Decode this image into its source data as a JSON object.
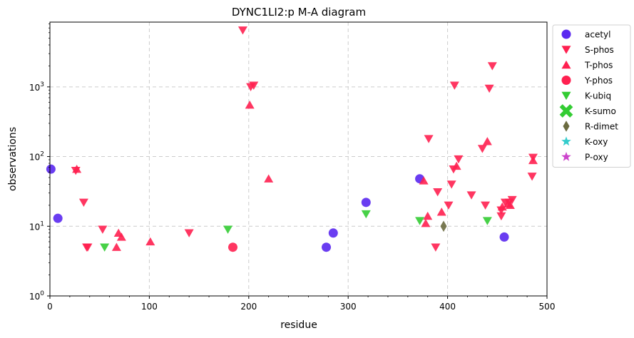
{
  "chart_data": {
    "type": "scatter",
    "title": "DYNC1LI2:p M-A diagram",
    "xlabel": "residue",
    "ylabel": "observations",
    "xlim": [
      0,
      500
    ],
    "ylim": [
      1,
      8500
    ],
    "yscale": "log",
    "grid": true,
    "legend_position": "outside-right",
    "x_ticks": [
      {
        "value": 0,
        "label": "0"
      },
      {
        "value": 100,
        "label": "100"
      },
      {
        "value": 200,
        "label": "200"
      },
      {
        "value": 300,
        "label": "300"
      },
      {
        "value": 400,
        "label": "400"
      },
      {
        "value": 500,
        "label": "500"
      }
    ],
    "y_ticks": [
      {
        "value": 1,
        "base": "10",
        "exp": "0"
      },
      {
        "value": 10,
        "base": "10",
        "exp": "1"
      },
      {
        "value": 100,
        "base": "10",
        "exp": "2"
      },
      {
        "value": 1000,
        "base": "10",
        "exp": "3"
      }
    ],
    "series": [
      {
        "name": "acetyl",
        "marker": "circle",
        "color": "#5a28f0",
        "points": [
          [
            1,
            66
          ],
          [
            8,
            13
          ],
          [
            278,
            5
          ],
          [
            285,
            8
          ],
          [
            318,
            22
          ],
          [
            372,
            48
          ],
          [
            457,
            7
          ]
        ]
      },
      {
        "name": "S-phos",
        "marker": "triangle-down",
        "color": "#ff2050",
        "points": [
          [
            26,
            63
          ],
          [
            34,
            22
          ],
          [
            37,
            5
          ],
          [
            38,
            5
          ],
          [
            53,
            9
          ],
          [
            140,
            8
          ],
          [
            194,
            6500
          ],
          [
            202,
            1000
          ],
          [
            205,
            1050
          ],
          [
            381,
            180
          ],
          [
            388,
            5
          ],
          [
            390,
            31
          ],
          [
            401,
            20
          ],
          [
            404,
            40
          ],
          [
            406,
            66
          ],
          [
            407,
            1050
          ],
          [
            411,
            92
          ],
          [
            424,
            28
          ],
          [
            435,
            130
          ],
          [
            438,
            20
          ],
          [
            442,
            950
          ],
          [
            445,
            2000
          ],
          [
            454,
            14
          ],
          [
            454,
            17
          ],
          [
            458,
            22
          ],
          [
            462,
            22
          ],
          [
            465,
            24
          ],
          [
            485,
            52
          ],
          [
            486,
            97
          ]
        ]
      },
      {
        "name": "T-phos",
        "marker": "triangle-up",
        "color": "#ff2050",
        "points": [
          [
            27,
            66
          ],
          [
            67,
            5
          ],
          [
            69,
            8
          ],
          [
            72,
            7
          ],
          [
            101,
            6
          ],
          [
            201,
            550
          ],
          [
            220,
            48
          ],
          [
            376,
            45
          ],
          [
            378,
            11
          ],
          [
            380,
            14
          ],
          [
            394,
            16
          ],
          [
            409,
            73
          ],
          [
            440,
            165
          ],
          [
            455,
            19
          ],
          [
            461,
            21
          ],
          [
            463,
            20
          ],
          [
            486,
            88
          ]
        ]
      },
      {
        "name": "Y-phos",
        "marker": "circle",
        "color": "#ff2050",
        "points": [
          [
            184,
            5
          ]
        ]
      },
      {
        "name": "K-ubiq",
        "marker": "triangle-down",
        "color": "#33cc33",
        "points": [
          [
            55,
            5
          ],
          [
            179,
            9
          ],
          [
            318,
            15
          ],
          [
            372,
            12
          ],
          [
            440,
            12
          ]
        ]
      },
      {
        "name": "K-sumo",
        "marker": "x",
        "color": "#33cc33",
        "points": []
      },
      {
        "name": "R-dimet",
        "marker": "diamond",
        "color": "#6b6b40",
        "points": [
          [
            396,
            10
          ]
        ]
      },
      {
        "name": "K-oxy",
        "marker": "star",
        "color": "#33cccc",
        "points": []
      },
      {
        "name": "P-oxy",
        "marker": "star",
        "color": "#cc44cc",
        "points": []
      }
    ]
  }
}
